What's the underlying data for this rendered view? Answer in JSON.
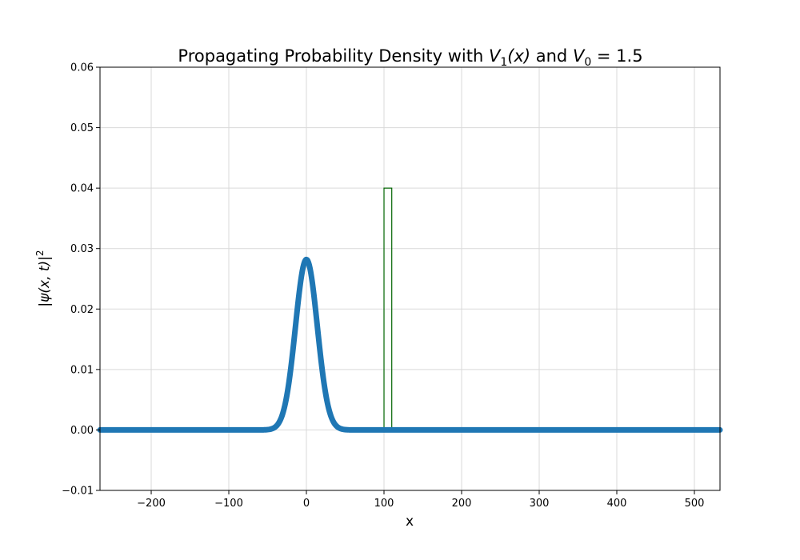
{
  "chart_data": {
    "type": "line",
    "title": {
      "prefix": "Propagating Probability Density with ",
      "v1_symbol": "V",
      "v1_sub": "1",
      "v1_arg": "(x)",
      "middle": " and ",
      "v0_symbol": "V",
      "v0_sub": "0",
      "suffix": " = 1.5"
    },
    "xlabel": "x",
    "ylabel": {
      "open": "|",
      "psi": "ψ",
      "args": "(x, t)",
      "close": "|",
      "power": "2"
    },
    "xlim": [
      -266,
      533
    ],
    "ylim": [
      -0.01,
      0.06
    ],
    "xticks": [
      -200,
      -100,
      0,
      100,
      200,
      300,
      400,
      500
    ],
    "xtick_labels": [
      "−200",
      "−100",
      "0",
      "100",
      "200",
      "300",
      "400",
      "500"
    ],
    "yticks": [
      -0.01,
      0.0,
      0.01,
      0.02,
      0.03,
      0.04,
      0.05,
      0.06
    ],
    "ytick_labels": [
      "−0.01",
      "0.00",
      "0.01",
      "0.02",
      "0.03",
      "0.04",
      "0.05",
      "0.06"
    ],
    "grid": true,
    "series": [
      {
        "kind": "gaussian",
        "center": 0,
        "peak": 0.0282,
        "sigma": 14.1,
        "x_range": [
          -266,
          533
        ],
        "color": "#1f77b4"
      },
      {
        "kind": "barrier",
        "x_start": 100,
        "x_end": 110,
        "height": 0.04,
        "color": "#006400"
      }
    ]
  }
}
